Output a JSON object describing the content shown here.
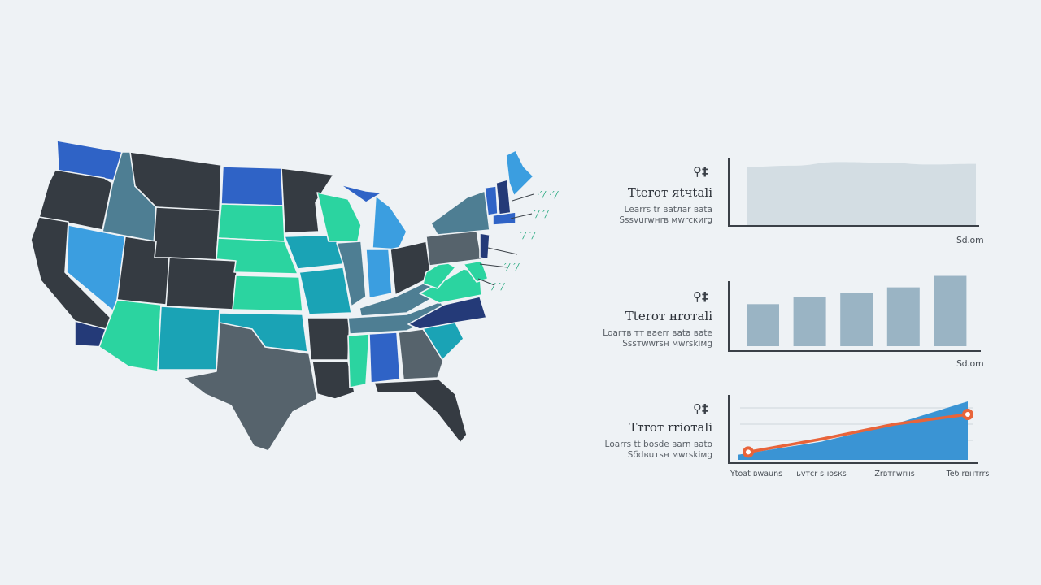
{
  "colors": {
    "background": "#eef2f5",
    "charcoal": "#353b42",
    "slate": "#56636c",
    "steel": "#4e7e93",
    "royal_blue": "#2f63c6",
    "sky_blue": "#3b9ee0",
    "teal": "#1aa3b5",
    "mint": "#2bd4a0",
    "navy": "#243a78",
    "area_gray": "#d3dde3",
    "bar_gray": "#9ab4c4",
    "line_blue": "#3a94d4",
    "trend_orange": "#e8643a"
  },
  "map": {
    "callouts": [
      "·′/ ·′/",
      "′/ ′/",
      "′/ ′/",
      "′/ ′/",
      "′/ ′/"
    ]
  },
  "info_blocks": [
    {
      "icon": "⚲‡",
      "title": "Tteroт яtчtali",
      "line1": "Lеаrrs tr ваtлаr ваta",
      "line2": "Sssvurwнrв мwrскиrg"
    },
    {
      "icon": "⚲‡",
      "title": "Tteroт нroтali",
      "line1": "Lоаrтв тт ваеrr ваta ваte",
      "line2": "Sssтwwrsн мwrskiмg"
    },
    {
      "icon": "⚲‡",
      "title": "Tтroт rrioтali",
      "line1": "Lоаrrs tt bоsdе ваrn вato",
      "line2": "Sбdвuтsн мwrskiмg"
    }
  ],
  "chart_data": [
    {
      "type": "area",
      "x": [
        0,
        1,
        2,
        3,
        4,
        5
      ],
      "values": [
        95,
        97,
        103,
        102,
        99,
        100
      ],
      "corner_label": "Sd.om",
      "ylim": [
        0,
        110
      ]
    },
    {
      "type": "bar",
      "categories": [
        "",
        "",
        "",
        "",
        ""
      ],
      "values": [
        55,
        64,
        70,
        77,
        92
      ],
      "corner_label": "Sd.om",
      "ylim": [
        0,
        100
      ]
    },
    {
      "type": "area",
      "x": [
        "Ytoat вwauns",
        "ьvтсr sноsкs",
        "Zrвтгwrнs",
        "Teб rвнтrrs"
      ],
      "series": [
        {
          "values": [
            8,
            28,
            55,
            90
          ]
        },
        {
          "values": [
            12,
            32,
            55,
            70
          ]
        }
      ],
      "ylim": [
        0,
        100
      ],
      "grid": true
    }
  ]
}
